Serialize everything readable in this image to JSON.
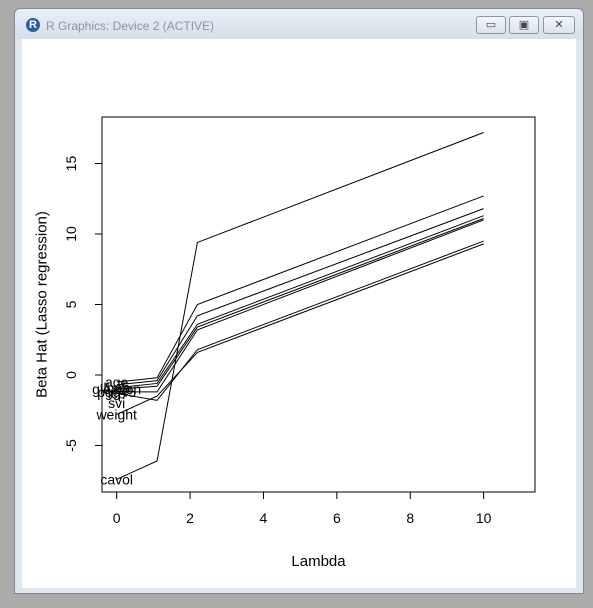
{
  "window": {
    "title": "R Graphics: Device 2 (ACTIVE)",
    "app_icon": "R",
    "controls": {
      "minimize": "▭",
      "maximize": "▣",
      "close": "✕"
    }
  },
  "chart_data": {
    "type": "line",
    "xlabel": "Lambda",
    "ylabel": "Beta Hat (Lasso regression)",
    "xlim": [
      -0.4,
      11.4
    ],
    "ylim": [
      -8.3,
      18.3
    ],
    "xticks": [
      0,
      2,
      4,
      6,
      8,
      10
    ],
    "yticks": [
      -5,
      0,
      5,
      10,
      15
    ],
    "grid": false,
    "x": [
      0,
      1.1,
      2.2,
      10
    ],
    "series": [
      {
        "values": [
          -7.4,
          -6.1,
          9.4,
          17.2
        ]
      },
      {
        "values": [
          -0.5,
          -0.2,
          5.0,
          12.7
        ]
      },
      {
        "values": [
          -0.7,
          -0.4,
          4.2,
          11.8
        ]
      },
      {
        "values": [
          -0.9,
          -0.6,
          3.6,
          11.3
        ]
      },
      {
        "values": [
          -1.0,
          -0.8,
          3.4,
          11.1
        ]
      },
      {
        "values": [
          -1.2,
          -1.2,
          3.2,
          11.0
        ]
      },
      {
        "values": [
          -2.8,
          -1.5,
          1.6,
          9.3
        ]
      },
      {
        "values": [
          -1.3,
          -1.8,
          1.8,
          9.5
        ]
      }
    ],
    "labels": [
      {
        "text": "cavol",
        "x": 0,
        "y": -7.4
      },
      {
        "text": "weight",
        "x": 0,
        "y": -2.8
      },
      {
        "text": "svi",
        "x": 0,
        "y": -2.0
      },
      {
        "text": "gleason",
        "x": 0,
        "y": -1.0
      },
      {
        "text": "lbph",
        "x": 0,
        "y": -0.9
      },
      {
        "text": "pgg45",
        "x": 0,
        "y": -1.2
      },
      {
        "text": "lcp",
        "x": 0,
        "y": -1.3
      },
      {
        "text": "age",
        "x": 0,
        "y": -0.5
      }
    ]
  }
}
